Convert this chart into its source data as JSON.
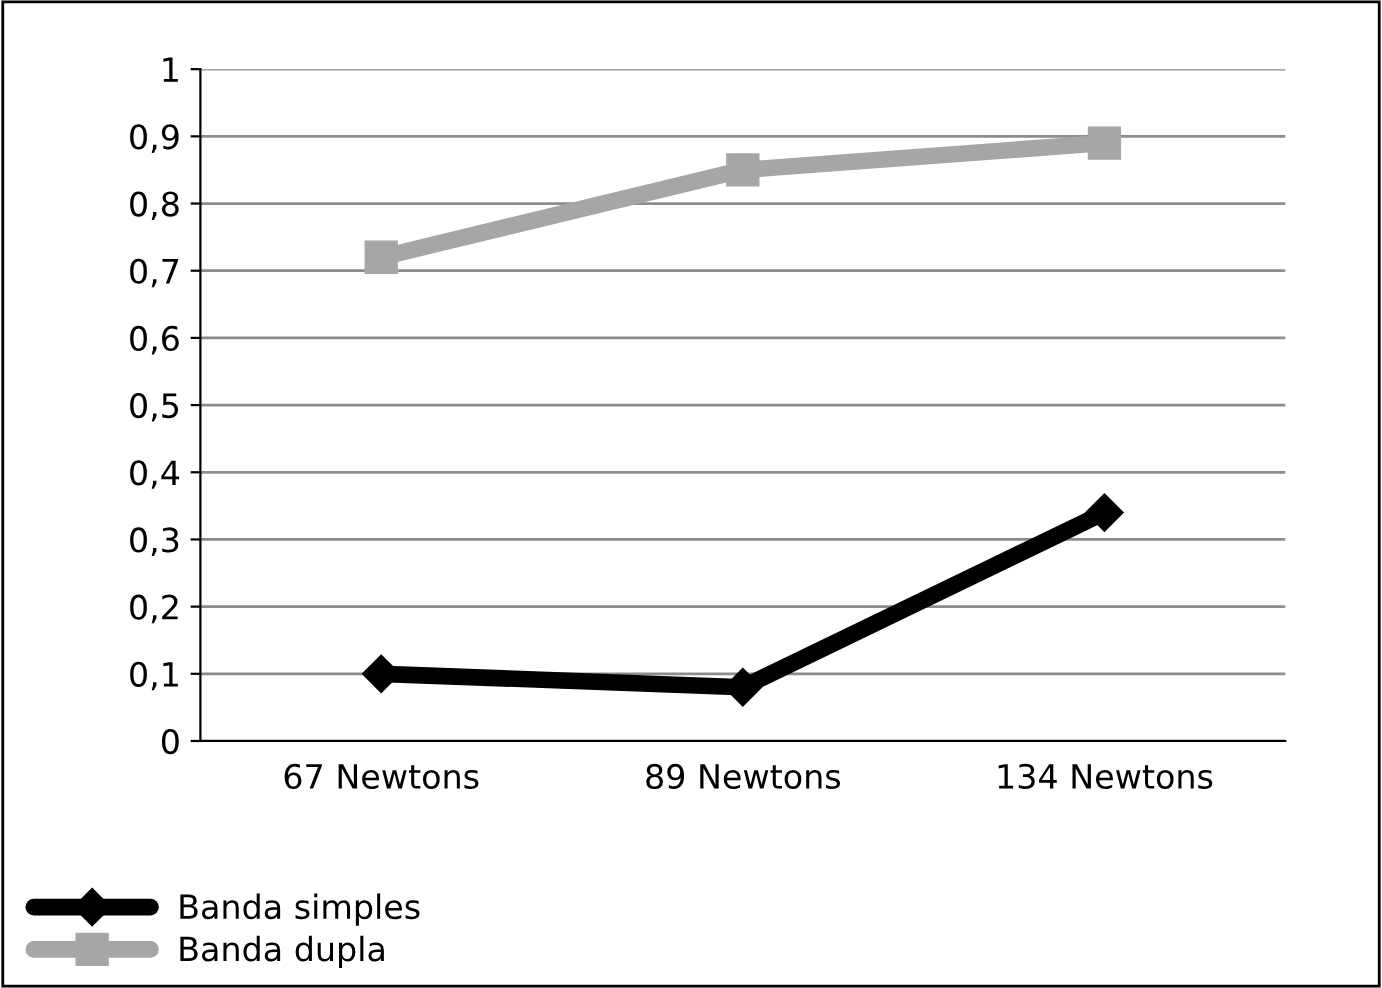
{
  "chart_data": {
    "type": "line",
    "categories": [
      "67 Newtons",
      "89 Newtons",
      "134 Newtons"
    ],
    "series": [
      {
        "name": "Banda simples",
        "color": "#000000",
        "marker": "diamond",
        "values": [
          0.1,
          0.08,
          0.34
        ]
      },
      {
        "name": "Banda dupla",
        "color": "#a6a6a6",
        "marker": "square",
        "values": [
          0.72,
          0.85,
          0.89
        ]
      }
    ],
    "ylim": [
      0,
      1
    ],
    "yticks": [
      0,
      {
        "value": 0.1,
        "label": "0,1"
      },
      {
        "value": 0.2,
        "label": "0,2"
      },
      {
        "value": 0.3,
        "label": "0,3"
      },
      {
        "value": 0.4,
        "label": "0,4"
      },
      {
        "value": 0.5,
        "label": "0,5"
      },
      {
        "value": 0.6,
        "label": "0,6"
      },
      {
        "value": 0.7,
        "label": "0,7"
      },
      {
        "value": 0.8,
        "label": "0,8"
      },
      {
        "value": 0.9,
        "label": "0,9"
      },
      1
    ],
    "grid": "y",
    "legend": "bottom left",
    "line_style": "solid"
  }
}
